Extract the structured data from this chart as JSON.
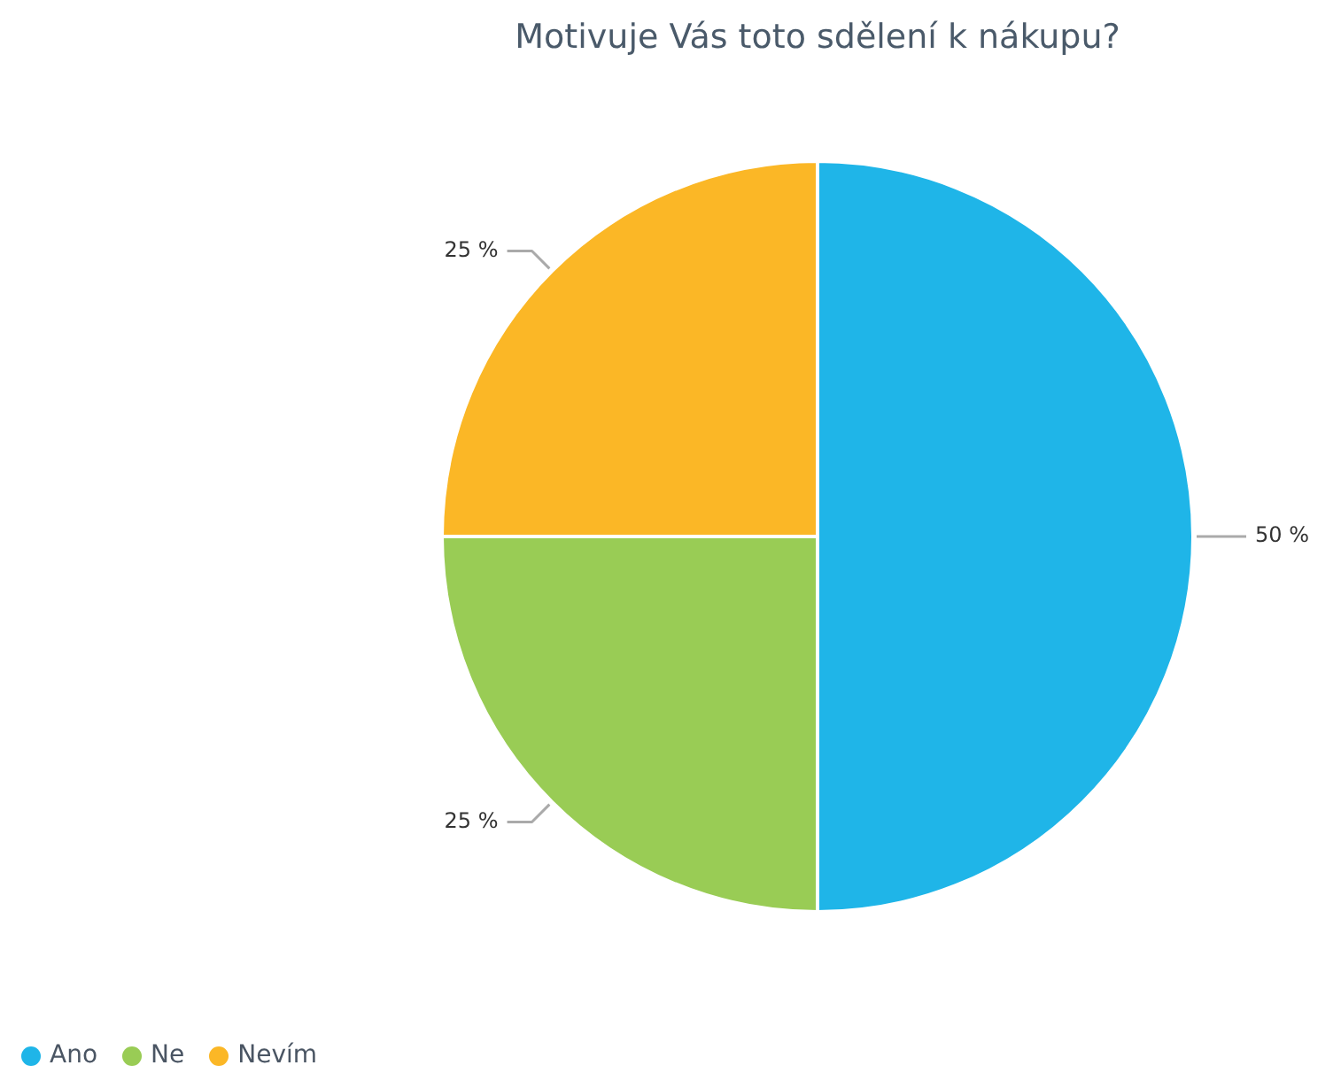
{
  "chart_data": {
    "type": "pie",
    "title": "Motivuje Vás toto sdělení k nákupu?",
    "categories": [
      "Ano",
      "Ne",
      "Nevím"
    ],
    "values": [
      50,
      25,
      25
    ],
    "colors": [
      "#1fb5e8",
      "#99cc55",
      "#fbb726"
    ],
    "value_labels": [
      "50 %",
      "25 %",
      "25 %"
    ],
    "legend": "bottom left"
  }
}
